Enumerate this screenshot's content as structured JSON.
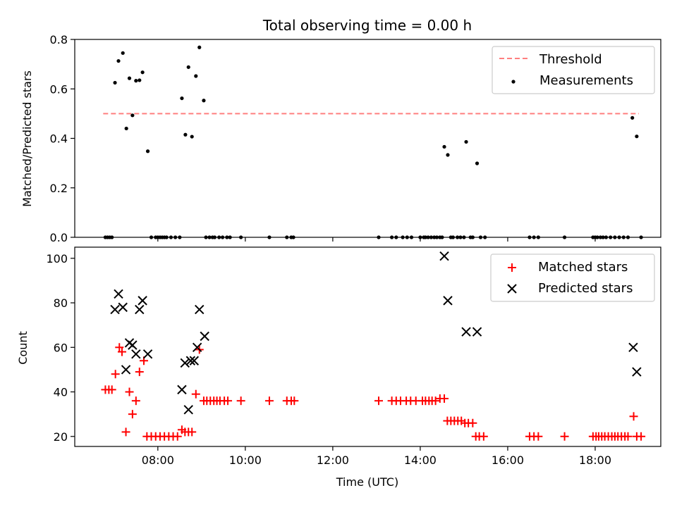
{
  "colors": {
    "threshold": "#ff7f7f",
    "measurement": "#000000",
    "matched": "#ff0000",
    "predicted": "#000000",
    "axes": "#000000"
  },
  "chart_data": [
    {
      "type": "scatter",
      "title": "Total observing time = 0.00 h",
      "xlabel": "",
      "ylabel": "Matched/Predicted stars",
      "xlim": [
        6.1,
        19.5
      ],
      "ylim": [
        0,
        0.8
      ],
      "yticks": [
        0.0,
        0.2,
        0.4,
        0.6,
        0.8
      ],
      "ytick_labels": [
        "0.0",
        "0.2",
        "0.4",
        "0.6",
        "0.8"
      ],
      "xticks": [
        8,
        10,
        12,
        14,
        16,
        18
      ],
      "xtick_labels": [],
      "legend": {
        "position": "top-right",
        "entries": [
          "Threshold",
          "Measurements"
        ]
      },
      "threshold": {
        "name": "Threshold",
        "value": 0.5,
        "x_range": [
          6.75,
          19.0
        ],
        "style": "dashed"
      },
      "series": [
        {
          "name": "Measurements",
          "points": [
            [
              6.8,
              0.0
            ],
            [
              6.85,
              0.0
            ],
            [
              6.9,
              0.0
            ],
            [
              6.95,
              0.0
            ],
            [
              7.02,
              0.625
            ],
            [
              7.1,
              0.713
            ],
            [
              7.2,
              0.745
            ],
            [
              7.28,
              0.44
            ],
            [
              7.35,
              0.643
            ],
            [
              7.42,
              0.493
            ],
            [
              7.5,
              0.633
            ],
            [
              7.58,
              0.635
            ],
            [
              7.65,
              0.667
            ],
            [
              7.77,
              0.348
            ],
            [
              7.85,
              0.0
            ],
            [
              7.95,
              0.0
            ],
            [
              8.0,
              0.0
            ],
            [
              8.05,
              0.0
            ],
            [
              8.1,
              0.0
            ],
            [
              8.15,
              0.0
            ],
            [
              8.2,
              0.0
            ],
            [
              8.3,
              0.0
            ],
            [
              8.4,
              0.0
            ],
            [
              8.5,
              0.0
            ],
            [
              8.55,
              0.562
            ],
            [
              8.63,
              0.415
            ],
            [
              8.7,
              0.688
            ],
            [
              8.78,
              0.407
            ],
            [
              8.87,
              0.652
            ],
            [
              8.95,
              0.768
            ],
            [
              9.05,
              0.553
            ],
            [
              9.1,
              0.0
            ],
            [
              9.18,
              0.0
            ],
            [
              9.25,
              0.0
            ],
            [
              9.3,
              0.0
            ],
            [
              9.4,
              0.0
            ],
            [
              9.48,
              0.0
            ],
            [
              9.58,
              0.0
            ],
            [
              9.65,
              0.0
            ],
            [
              9.9,
              0.0
            ],
            [
              10.55,
              0.0
            ],
            [
              10.95,
              0.0
            ],
            [
              11.05,
              0.0
            ],
            [
              11.1,
              0.0
            ],
            [
              13.05,
              0.0
            ],
            [
              13.35,
              0.0
            ],
            [
              13.45,
              0.0
            ],
            [
              13.6,
              0.0
            ],
            [
              13.7,
              0.0
            ],
            [
              13.8,
              0.0
            ],
            [
              14.0,
              0.0
            ],
            [
              14.08,
              0.0
            ],
            [
              14.12,
              0.0
            ],
            [
              14.18,
              0.0
            ],
            [
              14.25,
              0.0
            ],
            [
              14.32,
              0.0
            ],
            [
              14.38,
              0.0
            ],
            [
              14.45,
              0.0
            ],
            [
              14.5,
              0.0
            ],
            [
              14.55,
              0.366
            ],
            [
              14.63,
              0.333
            ],
            [
              14.7,
              0.0
            ],
            [
              14.75,
              0.0
            ],
            [
              14.85,
              0.0
            ],
            [
              14.92,
              0.0
            ],
            [
              15.0,
              0.0
            ],
            [
              15.05,
              0.386
            ],
            [
              15.15,
              0.0
            ],
            [
              15.2,
              0.0
            ],
            [
              15.3,
              0.299
            ],
            [
              15.38,
              0.0
            ],
            [
              15.48,
              0.0
            ],
            [
              16.5,
              0.0
            ],
            [
              16.6,
              0.0
            ],
            [
              16.7,
              0.0
            ],
            [
              17.3,
              0.0
            ],
            [
              17.95,
              0.0
            ],
            [
              18.0,
              0.0
            ],
            [
              18.05,
              0.0
            ],
            [
              18.12,
              0.0
            ],
            [
              18.18,
              0.0
            ],
            [
              18.25,
              0.0
            ],
            [
              18.35,
              0.0
            ],
            [
              18.45,
              0.0
            ],
            [
              18.55,
              0.0
            ],
            [
              18.65,
              0.0
            ],
            [
              18.75,
              0.0
            ],
            [
              18.85,
              0.483
            ],
            [
              18.95,
              0.408
            ],
            [
              19.05,
              0.0
            ]
          ]
        }
      ]
    },
    {
      "type": "scatter",
      "title": "",
      "xlabel": "Time (UTC)",
      "ylabel": "Count",
      "xlim": [
        6.1,
        19.5
      ],
      "ylim": [
        15.5,
        105
      ],
      "yticks": [
        20,
        40,
        60,
        80,
        100
      ],
      "ytick_labels": [
        "20",
        "40",
        "60",
        "80",
        "100"
      ],
      "xticks": [
        8,
        10,
        12,
        14,
        16,
        18
      ],
      "xtick_labels": [
        "08:00",
        "10:00",
        "12:00",
        "14:00",
        "16:00",
        "18:00"
      ],
      "legend": {
        "position": "top-right",
        "entries": [
          "Matched stars",
          "Predicted stars"
        ]
      },
      "series": [
        {
          "name": "Matched stars",
          "marker": "plus",
          "points": [
            [
              6.8,
              41
            ],
            [
              6.88,
              41
            ],
            [
              6.95,
              41
            ],
            [
              7.03,
              48
            ],
            [
              7.12,
              60
            ],
            [
              7.18,
              58
            ],
            [
              7.27,
              22
            ],
            [
              7.35,
              40
            ],
            [
              7.42,
              30
            ],
            [
              7.5,
              36
            ],
            [
              7.58,
              49
            ],
            [
              7.68,
              54
            ],
            [
              7.75,
              20
            ],
            [
              7.85,
              20
            ],
            [
              7.95,
              20
            ],
            [
              8.05,
              20
            ],
            [
              8.15,
              20
            ],
            [
              8.25,
              20
            ],
            [
              8.35,
              20
            ],
            [
              8.45,
              20
            ],
            [
              8.55,
              23
            ],
            [
              8.62,
              22
            ],
            [
              8.7,
              22
            ],
            [
              8.78,
              22
            ],
            [
              8.87,
              39
            ],
            [
              8.95,
              59
            ],
            [
              9.05,
              36
            ],
            [
              9.12,
              36
            ],
            [
              9.2,
              36
            ],
            [
              9.28,
              36
            ],
            [
              9.35,
              36
            ],
            [
              9.42,
              36
            ],
            [
              9.52,
              36
            ],
            [
              9.6,
              36
            ],
            [
              9.9,
              36
            ],
            [
              10.55,
              36
            ],
            [
              10.95,
              36
            ],
            [
              11.05,
              36
            ],
            [
              11.12,
              36
            ],
            [
              13.05,
              36
            ],
            [
              13.35,
              36
            ],
            [
              13.45,
              36
            ],
            [
              13.55,
              36
            ],
            [
              13.68,
              36
            ],
            [
              13.78,
              36
            ],
            [
              13.9,
              36
            ],
            [
              14.05,
              36
            ],
            [
              14.12,
              36
            ],
            [
              14.2,
              36
            ],
            [
              14.27,
              36
            ],
            [
              14.35,
              36
            ],
            [
              14.45,
              37
            ],
            [
              14.55,
              37
            ],
            [
              14.62,
              27
            ],
            [
              14.7,
              27
            ],
            [
              14.78,
              27
            ],
            [
              14.86,
              27
            ],
            [
              14.94,
              27
            ],
            [
              15.02,
              26
            ],
            [
              15.1,
              26
            ],
            [
              15.2,
              26
            ],
            [
              15.27,
              20
            ],
            [
              15.35,
              20
            ],
            [
              15.45,
              20
            ],
            [
              16.5,
              20
            ],
            [
              16.6,
              20
            ],
            [
              16.7,
              20
            ],
            [
              17.3,
              20
            ],
            [
              17.95,
              20
            ],
            [
              18.02,
              20
            ],
            [
              18.08,
              20
            ],
            [
              18.15,
              20
            ],
            [
              18.22,
              20
            ],
            [
              18.3,
              20
            ],
            [
              18.38,
              20
            ],
            [
              18.45,
              20
            ],
            [
              18.52,
              20
            ],
            [
              18.6,
              20
            ],
            [
              18.68,
              20
            ],
            [
              18.75,
              20
            ],
            [
              18.88,
              29
            ],
            [
              18.95,
              20
            ],
            [
              19.05,
              20
            ]
          ]
        },
        {
          "name": "Predicted stars",
          "marker": "x",
          "points": [
            [
              7.02,
              77
            ],
            [
              7.1,
              84
            ],
            [
              7.2,
              78
            ],
            [
              7.27,
              50
            ],
            [
              7.35,
              62
            ],
            [
              7.42,
              61
            ],
            [
              7.5,
              57
            ],
            [
              7.58,
              77
            ],
            [
              7.65,
              81
            ],
            [
              7.77,
              57
            ],
            [
              8.55,
              41
            ],
            [
              8.62,
              53
            ],
            [
              8.7,
              32
            ],
            [
              8.75,
              54
            ],
            [
              8.83,
              54
            ],
            [
              8.9,
              60
            ],
            [
              8.95,
              77
            ],
            [
              9.07,
              65
            ],
            [
              14.55,
              101
            ],
            [
              14.63,
              81
            ],
            [
              15.05,
              67
            ],
            [
              15.3,
              67
            ],
            [
              18.87,
              60
            ],
            [
              18.95,
              49
            ]
          ]
        }
      ]
    }
  ]
}
